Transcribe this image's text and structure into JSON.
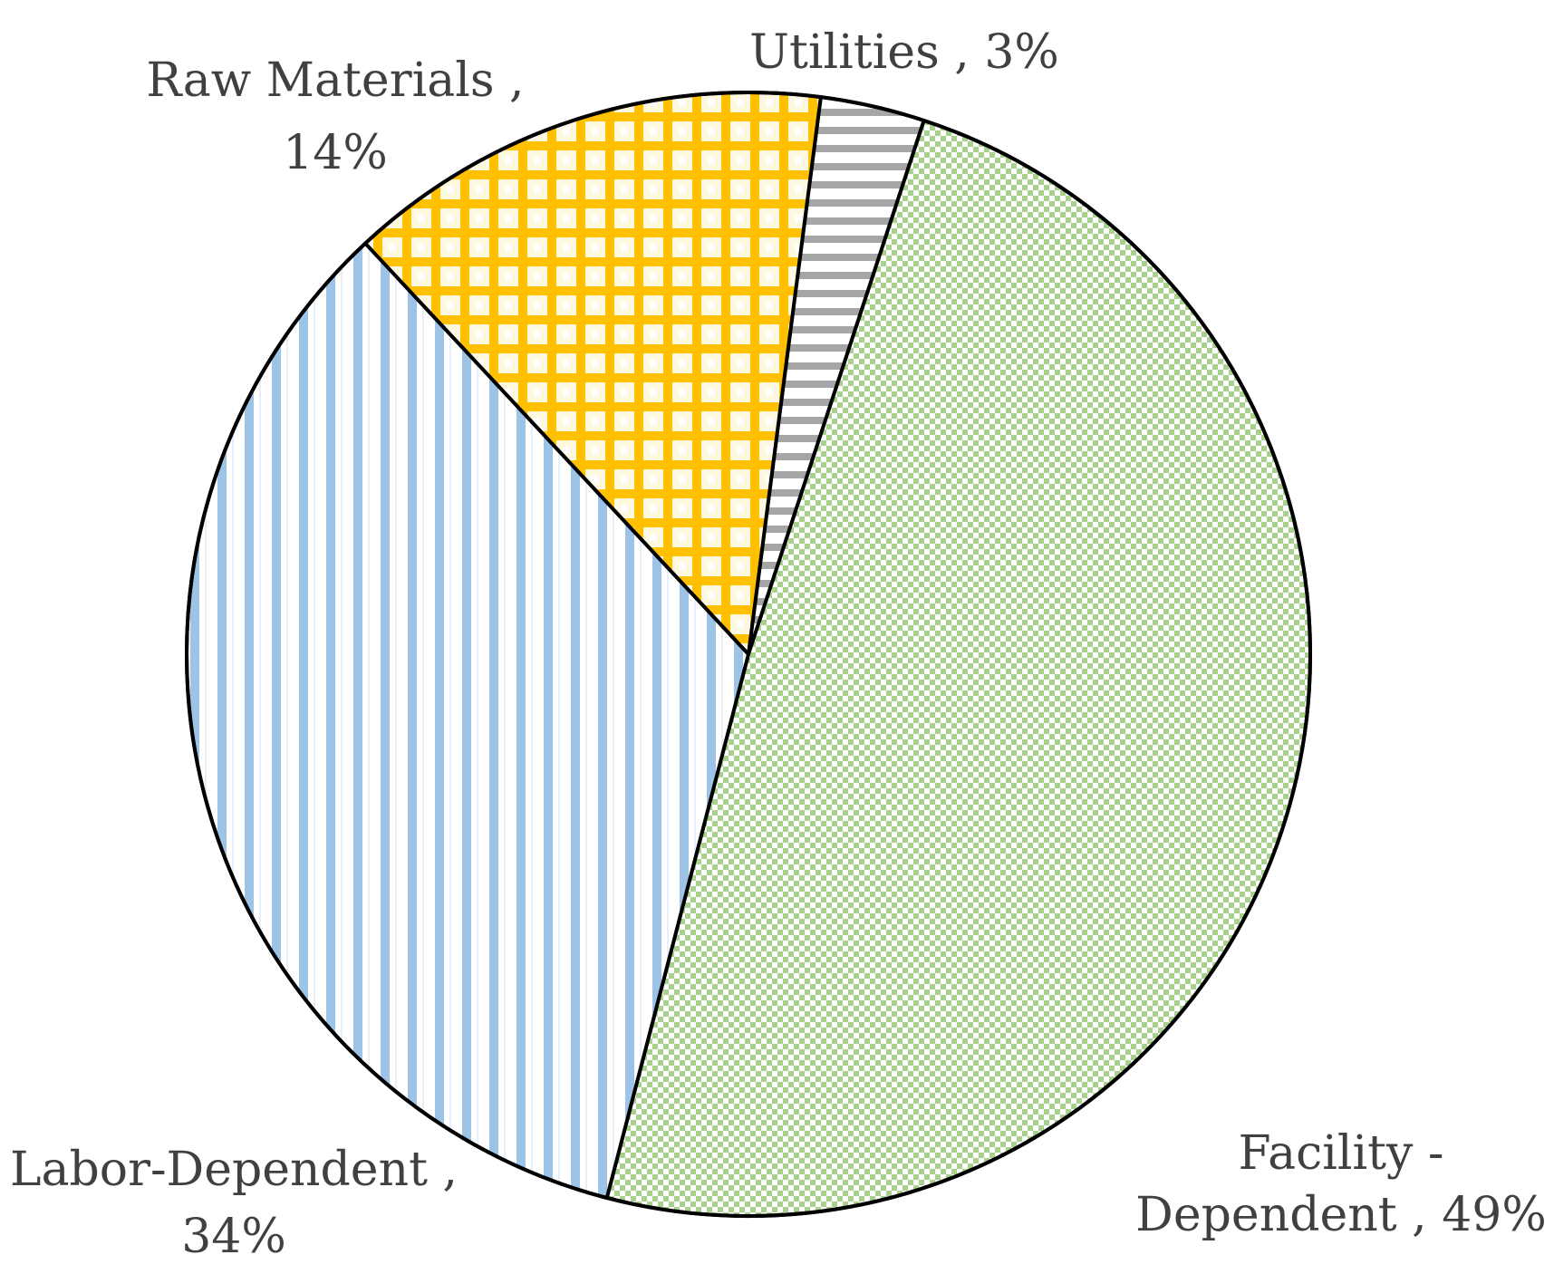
{
  "chart_data": {
    "type": "pie",
    "title": "",
    "slices": [
      {
        "name": "Utilities",
        "value": 3,
        "label_line1": "Utilities , 3%",
        "label_line2": "",
        "color": "#a6a6a6",
        "pattern": "horizontal-stripes"
      },
      {
        "name": "Facility - Dependent",
        "value": 49,
        "label_line1": "Facility -",
        "label_line2": "Dependent , 49%",
        "color": "#a9d18e",
        "pattern": "checkerboard"
      },
      {
        "name": "Labor-Dependent",
        "value": 34,
        "label_line1": "Labor-Dependent ,",
        "label_line2": "34%",
        "color": "#9dc3e6",
        "pattern": "vertical-stripes"
      },
      {
        "name": "Raw Materials",
        "value": 14,
        "label_line1": "Raw Materials ,",
        "label_line2": "14%",
        "color": "#ffc000",
        "pattern": "grid"
      }
    ],
    "start_direction": "top (12 o'clock)",
    "rotation": "clockwise",
    "legend": "none",
    "data_labels": "outside"
  }
}
